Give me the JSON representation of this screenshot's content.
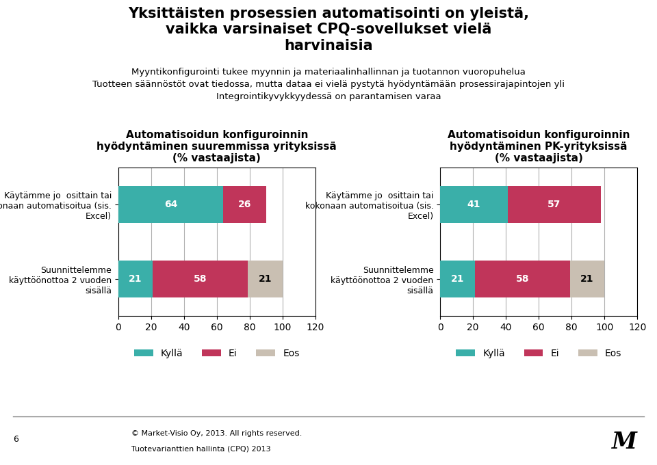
{
  "title": "Yksittäisten prosessien automatisointi on yleistä,\nvaikka varsinaiset CPQ-sovellukset vielä\nharvinaisia",
  "subtitle": "Myyntikonfigurointi tukee myynnin ja materiaalinhallinnan ja tuotannon vuoropuhelua\nTuotteen säännöstöt ovat tiedossa, mutta dataa ei vielä pystytä hyödyntämään prosessirajapintojen yli\nIntegrointikyvykkyydessä on parantamisen varaa",
  "annotations": [
    "6",
    "© Market-Visio Oy, 2013. All rights reserved.",
    "Tuotevarianttien hallinta (CPQ) 2013",
    "M"
  ],
  "chart_data": [
    {
      "type": "bar",
      "orientation": "horizontal",
      "stacked": true,
      "title": "Automatisoidun konfiguroinnin\nhyödyntäminen suuremmissa yrityksissä\n(% vastaajista)",
      "categories": [
        "Käytämme jo  osittain tai\nkokonaan automatisoitua (sis.\nExcel)",
        "Suunnittelemme\nkäyttöönottoa 2 vuoden\nsisällä"
      ],
      "series": [
        {
          "name": "Kyllä",
          "color": "#3aafa9",
          "values": [
            64,
            21
          ]
        },
        {
          "name": "Ei",
          "color": "#c0355a",
          "values": [
            26,
            58
          ]
        },
        {
          "name": "Eos",
          "color": "#c9bfb2",
          "values": [
            0,
            21
          ]
        }
      ],
      "xlim": [
        0,
        120
      ],
      "xticks": [
        0,
        20,
        40,
        60,
        80,
        100,
        120
      ],
      "grid": true,
      "data_labels": true,
      "legend": "lower center"
    },
    {
      "type": "bar",
      "orientation": "horizontal",
      "stacked": true,
      "title": "Automatisoidun konfiguroinnin\nhyödyntäminen PK-yrityksissä\n(% vastaajista)",
      "categories": [
        "Käytämme jo  osittain tai\nkokonaan automatisoitua (sis.\nExcel)",
        "Suunnittelemme\nkäyttöönottoa 2 vuoden\nsisällä"
      ],
      "series": [
        {
          "name": "Kyllä",
          "color": "#3aafa9",
          "values": [
            41,
            21
          ]
        },
        {
          "name": "Ei",
          "color": "#c0355a",
          "values": [
            57,
            58
          ]
        },
        {
          "name": "Eos",
          "color": "#c9bfb2",
          "values": [
            0,
            21
          ]
        }
      ],
      "xlim": [
        0,
        120
      ],
      "xticks": [
        0,
        20,
        40,
        60,
        80,
        100,
        120
      ],
      "grid": true,
      "data_labels": true,
      "legend": "lower center"
    }
  ]
}
